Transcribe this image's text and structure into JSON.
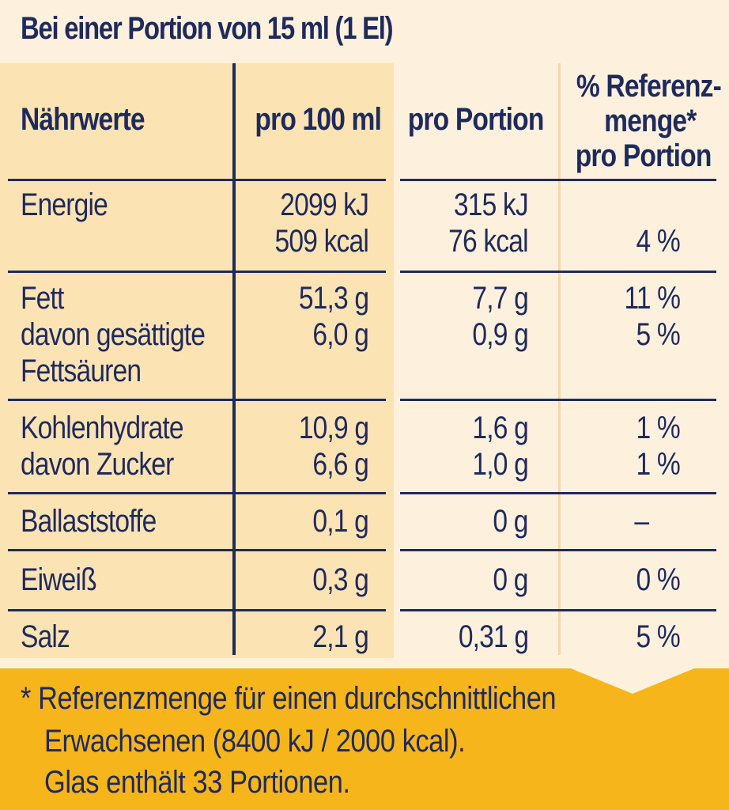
{
  "title": "Bei einer Portion von 15 ml (1 El)",
  "header": {
    "col1": "Nährwerte",
    "col2": "pro 100 ml",
    "col3": "pro Portion",
    "col4_line1": "% Referenz-",
    "col4_line2": "menge*",
    "col4_line3": "pro Portion"
  },
  "rows": [
    {
      "label": [
        "Energie"
      ],
      "per100": [
        "2099 kJ",
        "509 kcal"
      ],
      "portion": [
        "315 kJ",
        "76 kcal"
      ],
      "ref": [
        "",
        "4 %"
      ]
    },
    {
      "label": [
        "Fett",
        "davon gesättigte",
        "Fettsäuren"
      ],
      "per100": [
        "51,3 g",
        "6,0 g"
      ],
      "portion": [
        "7,7 g",
        "0,9 g"
      ],
      "ref": [
        "11 %",
        "5 %"
      ]
    },
    {
      "label": [
        "Kohlenhydrate",
        "davon Zucker"
      ],
      "per100": [
        "10,9 g",
        "6,6 g"
      ],
      "portion": [
        "1,6 g",
        "1,0 g"
      ],
      "ref": [
        "1 %",
        "1 %"
      ]
    },
    {
      "label": [
        "Ballaststoffe"
      ],
      "per100": [
        "0,1 g"
      ],
      "portion": [
        "0 g"
      ],
      "ref": [
        "–"
      ]
    },
    {
      "label": [
        "Eiweiß"
      ],
      "per100": [
        "0,3 g"
      ],
      "portion": [
        "0 g"
      ],
      "ref": [
        "0 %"
      ]
    },
    {
      "label": [
        "Salz"
      ],
      "per100": [
        "2,1 g"
      ],
      "portion": [
        "0,31 g"
      ],
      "ref": [
        "5 %"
      ]
    }
  ],
  "footer": {
    "line1": "* Referenzmenge für einen durchschnittlichen",
    "line2": "Erwachsenen (8400 kJ / 2000 kcal).",
    "line3": "Glas enthält 33 Portionen."
  },
  "colors": {
    "text": "#1f2a5c",
    "shade": "#fbe3b4",
    "background": "#fdf1de",
    "footer": "#f6b51a"
  }
}
